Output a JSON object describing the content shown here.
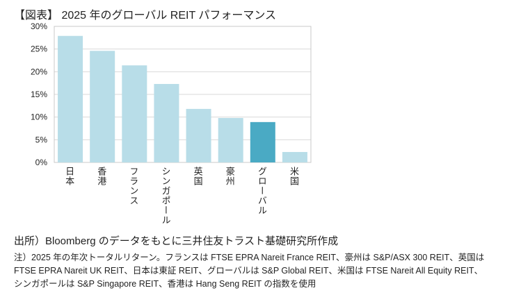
{
  "title": "【図表】 2025 年のグローバル REIT パフォーマンス",
  "chart_data": {
    "type": "bar",
    "title": "【図表】 2025 年のグローバル REIT パフォーマンス",
    "categories": [
      "日本",
      "香港",
      "フランス",
      "シンガポール",
      "英国",
      "豪州",
      "グローバル",
      "米国"
    ],
    "values": [
      27.9,
      24.6,
      21.4,
      17.3,
      11.8,
      9.8,
      8.9,
      2.3
    ],
    "highlight": "グローバル",
    "ylim": [
      0,
      30
    ],
    "yticks": [
      "0%",
      "5%",
      "10%",
      "15%",
      "20%",
      "25%",
      "30%"
    ],
    "grid": true,
    "colors": {
      "bar": "#b8dde8",
      "highlight": "#4aaac4"
    }
  },
  "source": "出所）Bloomberg のデータをもとに三井住友トラスト基礎研究所作成",
  "notes": [
    "注）2025 年の年次トータルリターン。フランスは FTSE EPRA Nareit France REIT、豪州は S&P/ASX 300 REIT、英国は",
    "FTSE EPRA Nareit UK REIT、日本は東証 REIT、グローバルは S&P Global REIT、米国は FTSE Nareit All Equity REIT、",
    "シンガポールは S&P Singapore REIT、香港は Hang Seng REIT の指数を使用"
  ]
}
